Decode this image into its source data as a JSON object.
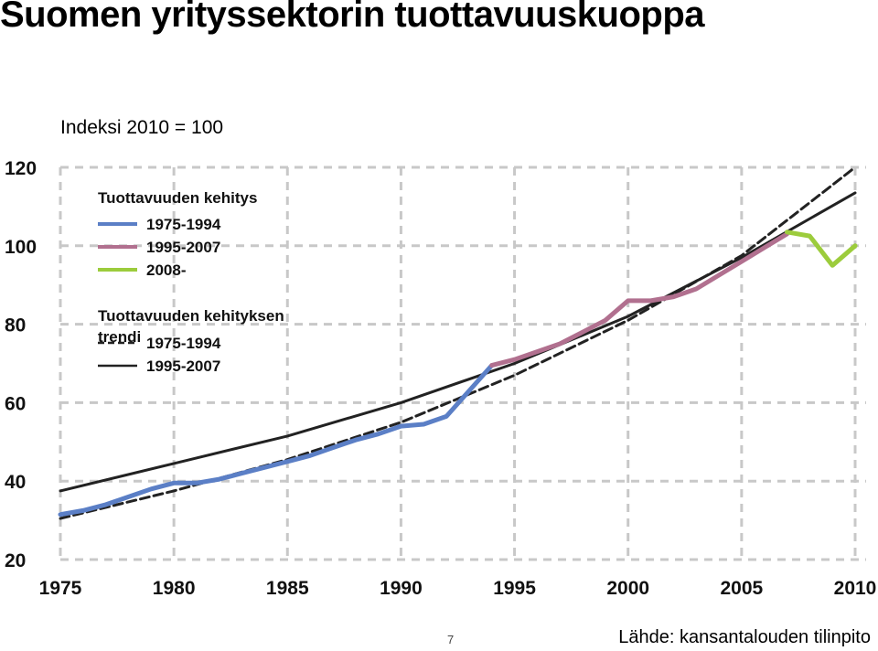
{
  "slide": {
    "title": "Suomen yrityssektorin tuottavuuskuoppa",
    "subtitle": "Indeksi 2010 = 100",
    "page_number": "7",
    "source": "Lähde: kansantalouden tilinpito"
  },
  "chart_data": {
    "type": "line",
    "title": "",
    "xlabel": "",
    "ylabel": "",
    "xlim": [
      1975,
      2010
    ],
    "ylim": [
      20,
      120
    ],
    "x_ticks": [
      1975,
      1980,
      1985,
      1990,
      1995,
      2000,
      2005,
      2010
    ],
    "y_ticks": [
      20,
      40,
      60,
      80,
      100,
      120
    ],
    "grid": true,
    "legend_position": "top-left",
    "legend": {
      "heading_1": "Tuottavuuden kehitys",
      "heading_2": "Tuottavuuden kehityksen trendi"
    },
    "series": [
      {
        "name": "1975-1994",
        "group": "kehitys",
        "color": "#5b7fc6",
        "style": "solid",
        "x": [
          1975,
          1976,
          1977,
          1978,
          1979,
          1980,
          1981,
          1982,
          1983,
          1984,
          1985,
          1986,
          1987,
          1988,
          1989,
          1990,
          1991,
          1992,
          1993,
          1994
        ],
        "y": [
          31.5,
          32.5,
          34,
          36,
          38,
          39.5,
          39.5,
          40.5,
          42,
          43.5,
          45,
          46.5,
          48.5,
          50.5,
          52,
          54,
          54.5,
          56.5,
          63,
          69.5
        ]
      },
      {
        "name": "1995-2007",
        "group": "kehitys",
        "color": "#b1708f",
        "style": "solid",
        "x": [
          1994,
          1995,
          1996,
          1997,
          1998,
          1999,
          2000,
          2001,
          2002,
          2003,
          2004,
          2005,
          2006,
          2007
        ],
        "y": [
          69.5,
          71,
          73,
          75,
          78,
          81,
          86,
          86,
          87,
          89,
          92.5,
          96,
          99.5,
          103
        ]
      },
      {
        "name": "2008-",
        "group": "kehitys",
        "color": "#9ccc3c",
        "style": "solid",
        "x": [
          2007,
          2008,
          2009,
          2010
        ],
        "y": [
          103.5,
          102.5,
          95,
          100
        ]
      },
      {
        "name": "1975-1994",
        "group": "trendi",
        "color": "#222222",
        "style": "dashed",
        "x": [
          1975,
          1980,
          1985,
          1990,
          1995,
          2000,
          2005,
          2010
        ],
        "y": [
          30.5,
          37.5,
          45.5,
          55,
          67,
          81,
          97.5,
          120
        ]
      },
      {
        "name": "1995-2007",
        "group": "trendi",
        "color": "#222222",
        "style": "solid",
        "x": [
          1975,
          1980,
          1985,
          1990,
          1995,
          2000,
          2005,
          2010
        ],
        "y": [
          37.5,
          44.5,
          51.5,
          60,
          70,
          82,
          97,
          113.5
        ]
      }
    ]
  }
}
